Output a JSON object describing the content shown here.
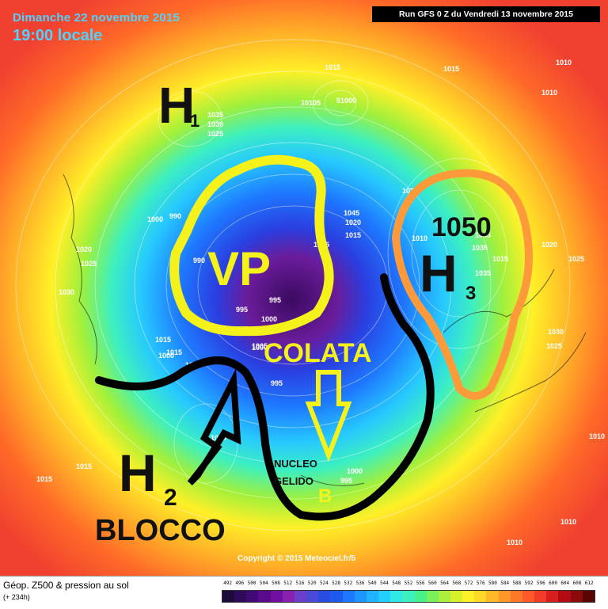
{
  "header": {
    "date": "Dimanche 22 novembre 2015",
    "time": "19:00 locale",
    "run": "Run GFS 0 Z du Vendredi 13 novembre 2015"
  },
  "footer": {
    "title": "Géop. Z500 & pression au sol",
    "subtitle": "(+ 234h)",
    "copyright": "Copyright © 2015 Meteociel.fr/5"
  },
  "legend": {
    "ticks": [
      "492",
      "496",
      "500",
      "504",
      "508",
      "512",
      "516",
      "520",
      "524",
      "528",
      "532",
      "536",
      "540",
      "544",
      "548",
      "552",
      "556",
      "560",
      "564",
      "568",
      "572",
      "576",
      "580",
      "584",
      "588",
      "592",
      "596",
      "600",
      "604",
      "608",
      "612"
    ],
    "colors": [
      "#1b0a3a",
      "#2d0a5a",
      "#400a74",
      "#5a0a8c",
      "#7010a0",
      "#8a20b0",
      "#6a40c8",
      "#4a4ad8",
      "#2a4ce0",
      "#1c5af0",
      "#1e78ff",
      "#1e96ff",
      "#20b4ff",
      "#24cfff",
      "#30e8e6",
      "#3cf0c0",
      "#46f08a",
      "#78f05a",
      "#aaf03c",
      "#d8f028",
      "#fff028",
      "#ffd828",
      "#ffb828",
      "#ff9628",
      "#ff7828",
      "#ff5a28",
      "#f03c28",
      "#d81e1e",
      "#b40a14",
      "#8c0a0a",
      "#5a0505"
    ]
  },
  "annotations": {
    "h1": "H",
    "h1_sub": "1",
    "h2": "H",
    "h2_sub": "2",
    "h3": "H",
    "h3_sub": "3",
    "h3_value": "1050",
    "vp": "VP",
    "colata": "COLATA",
    "nucleo_line1": "NUCLEO",
    "nucleo_line2": "GELIDO",
    "b": "B",
    "blocco": "BLOCCO"
  },
  "pressure_labels": [
    "1015",
    "10105",
    "51000",
    "1025",
    "1030",
    "1035",
    "1000",
    "990",
    "1020",
    "1025",
    "1030",
    "1015",
    "1000",
    "1010",
    "995",
    "995",
    "1000",
    "1015",
    "1015",
    "1020",
    "1045",
    "1025",
    "1020",
    "1015",
    "1010",
    "1045",
    "1035",
    "1035",
    "1010",
    "1015",
    "1010",
    "1025",
    "1030",
    "1025",
    "1010",
    "1015",
    "1020",
    "1015",
    "1010",
    "1010",
    "1000",
    "1015",
    "990",
    "1005",
    "995",
    "1000",
    "995"
  ]
}
